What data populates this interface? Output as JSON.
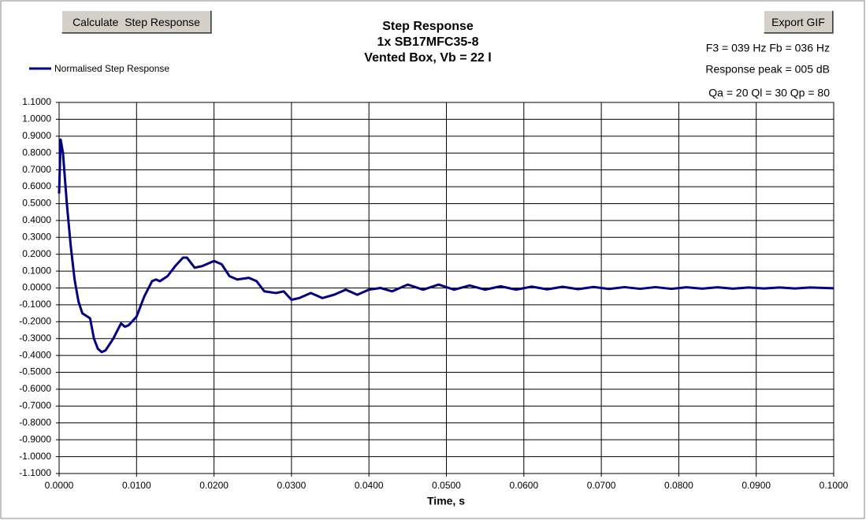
{
  "buttons": [
    "Calculate  Step Response",
    "Export GIF"
  ],
  "chart_data": {
    "type": "line",
    "title": [
      "Step Response",
      "1x SB17MFC35-8",
      "Vented Box, Vb = 22 l"
    ],
    "x_label": "Time, s",
    "annotations": [
      "F3 = 039 Hz  Fb = 036 Hz",
      "Response peak = 005 dB",
      "Qa = 20  Ql = 30  Qp = 80"
    ],
    "x": [
      0,
      0.0002,
      0.0005,
      0.001,
      0.0015,
      0.002,
      0.0025,
      0.003,
      0.004,
      0.0045,
      0.005,
      0.0055,
      0.006,
      0.007,
      0.008,
      0.0085,
      0.009,
      0.01,
      0.011,
      0.012,
      0.0125,
      0.013,
      0.014,
      0.015,
      0.016,
      0.0165,
      0.0175,
      0.0185,
      0.02,
      0.021,
      0.022,
      0.023,
      0.0245,
      0.0255,
      0.0265,
      0.028,
      0.029,
      0.03,
      0.031,
      0.0325,
      0.034,
      0.0355,
      0.037,
      0.0385,
      0.04,
      0.0415,
      0.043,
      0.045,
      0.047,
      0.049,
      0.051,
      0.053,
      0.055,
      0.057,
      0.059,
      0.061,
      0.063,
      0.065,
      0.067,
      0.069,
      0.071,
      0.073,
      0.075,
      0.077,
      0.079,
      0.081,
      0.083,
      0.085,
      0.087,
      0.089,
      0.091,
      0.093,
      0.095,
      0.097,
      0.1
    ],
    "series": [
      {
        "name": "Normalised Step Response",
        "color": "#000080",
        "values": [
          0.56,
          0.88,
          0.8,
          0.5,
          0.25,
          0.05,
          -0.08,
          -0.15,
          -0.18,
          -0.3,
          -0.36,
          -0.38,
          -0.37,
          -0.3,
          -0.21,
          -0.23,
          -0.22,
          -0.17,
          -0.05,
          0.04,
          0.05,
          0.04,
          0.07,
          0.13,
          0.18,
          0.18,
          0.12,
          0.13,
          0.16,
          0.14,
          0.07,
          0.05,
          0.06,
          0.04,
          -0.02,
          -0.03,
          -0.02,
          -0.07,
          -0.06,
          -0.03,
          -0.06,
          -0.04,
          -0.01,
          -0.04,
          -0.01,
          0,
          -0.02,
          0.02,
          -0.01,
          0.02,
          -0.01,
          0.015,
          -0.01,
          0.01,
          -0.01,
          0.008,
          -0.008,
          0.007,
          -0.007,
          0.006,
          -0.006,
          0.005,
          -0.005,
          0.005,
          -0.005,
          0.004,
          -0.004,
          0.004,
          -0.004,
          0.003,
          -0.003,
          0.003,
          -0.003,
          0.003,
          -0.002
        ]
      }
    ],
    "xlim": [
      0,
      0.1
    ],
    "xticks": [
      {
        "value": 0,
        "label": "0.0000"
      },
      {
        "value": 0.01,
        "label": "0.0100"
      },
      {
        "value": 0.02,
        "label": "0.0200"
      },
      {
        "value": 0.03,
        "label": "0.0300"
      },
      {
        "value": 0.04,
        "label": "0.0400"
      },
      {
        "value": 0.05,
        "label": "0.0500"
      },
      {
        "value": 0.06,
        "label": "0.0600"
      },
      {
        "value": 0.07,
        "label": "0.0700"
      },
      {
        "value": 0.08,
        "label": "0.0800"
      },
      {
        "value": 0.09,
        "label": "0.0900"
      },
      {
        "value": 0.1,
        "label": "0.1000"
      }
    ],
    "ylim": [
      -1.1,
      1.1
    ],
    "yticks": [
      {
        "value": -1.1,
        "label": "-1.1000"
      },
      {
        "value": -1.0,
        "label": "-1.0000"
      },
      {
        "value": -0.9,
        "label": "-0.9000"
      },
      {
        "value": -0.8,
        "label": "-0.8000"
      },
      {
        "value": -0.7,
        "label": "-0.7000"
      },
      {
        "value": -0.6,
        "label": "-0.6000"
      },
      {
        "value": -0.5,
        "label": "-0.5000"
      },
      {
        "value": -0.4,
        "label": "-0.4000"
      },
      {
        "value": -0.3,
        "label": "-0.3000"
      },
      {
        "value": -0.2,
        "label": "-0.2000"
      },
      {
        "value": -0.1,
        "label": "-0.1000"
      },
      {
        "value": 0,
        "label": "0.0000"
      },
      {
        "value": 0.1,
        "label": "0.1000"
      },
      {
        "value": 0.2,
        "label": "0.2000"
      },
      {
        "value": 0.3,
        "label": "0.3000"
      },
      {
        "value": 0.4,
        "label": "0.4000"
      },
      {
        "value": 0.5,
        "label": "0.5000"
      },
      {
        "value": 0.6,
        "label": "0.6000"
      },
      {
        "value": 0.7,
        "label": "0.7000"
      },
      {
        "value": 0.8,
        "label": "0.8000"
      },
      {
        "value": 0.9,
        "label": "0.9000"
      },
      {
        "value": 1.0,
        "label": "1.0000"
      },
      {
        "value": 1.1,
        "label": "1.1000"
      }
    ],
    "grid": true
  }
}
